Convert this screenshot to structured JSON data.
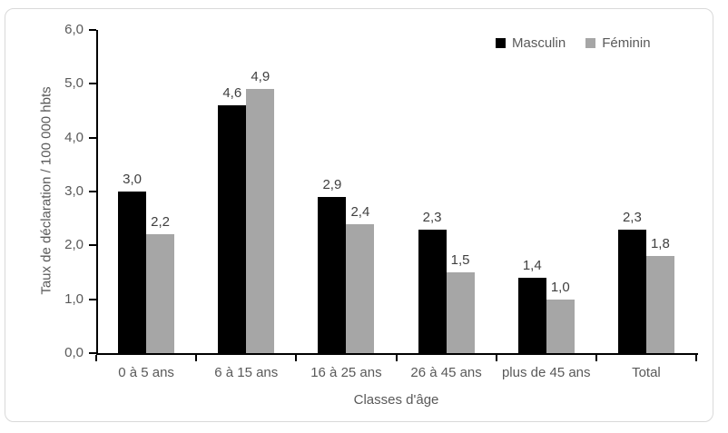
{
  "chart_data": {
    "type": "bar",
    "title": "",
    "xlabel": "Classes d'âge",
    "ylabel": "Taux de déclaration / 100 000 hbts",
    "ylim": [
      0,
      6.0
    ],
    "ytick_step": 1.0,
    "ytick_labels": [
      "0,0",
      "1,0",
      "2,0",
      "3,0",
      "4,0",
      "5,0",
      "6,0"
    ],
    "grid": false,
    "legend_position": "top-right",
    "categories": [
      "0 à 5 ans",
      "6 à 15 ans",
      "16 à 25 ans",
      "26 à 45 ans",
      "plus de 45 ans",
      "Total"
    ],
    "series": [
      {
        "name": "Masculin",
        "color": "#000000",
        "values": [
          3.0,
          4.6,
          2.9,
          2.3,
          1.4,
          2.3
        ],
        "labels": [
          "3,0",
          "4,6",
          "2,9",
          "2,3",
          "1,4",
          "2,3"
        ]
      },
      {
        "name": "Féminin",
        "color": "#a6a6a6",
        "values": [
          2.2,
          4.9,
          2.4,
          1.5,
          1.0,
          1.8
        ],
        "labels": [
          "2,2",
          "4,9",
          "2,4",
          "1,5",
          "1,0",
          "1,8"
        ]
      }
    ]
  },
  "colors": {
    "axis_line": "#000000",
    "tick_text": "#595959",
    "data_label_text": "#404040",
    "frame_border": "#d9d9d9"
  }
}
